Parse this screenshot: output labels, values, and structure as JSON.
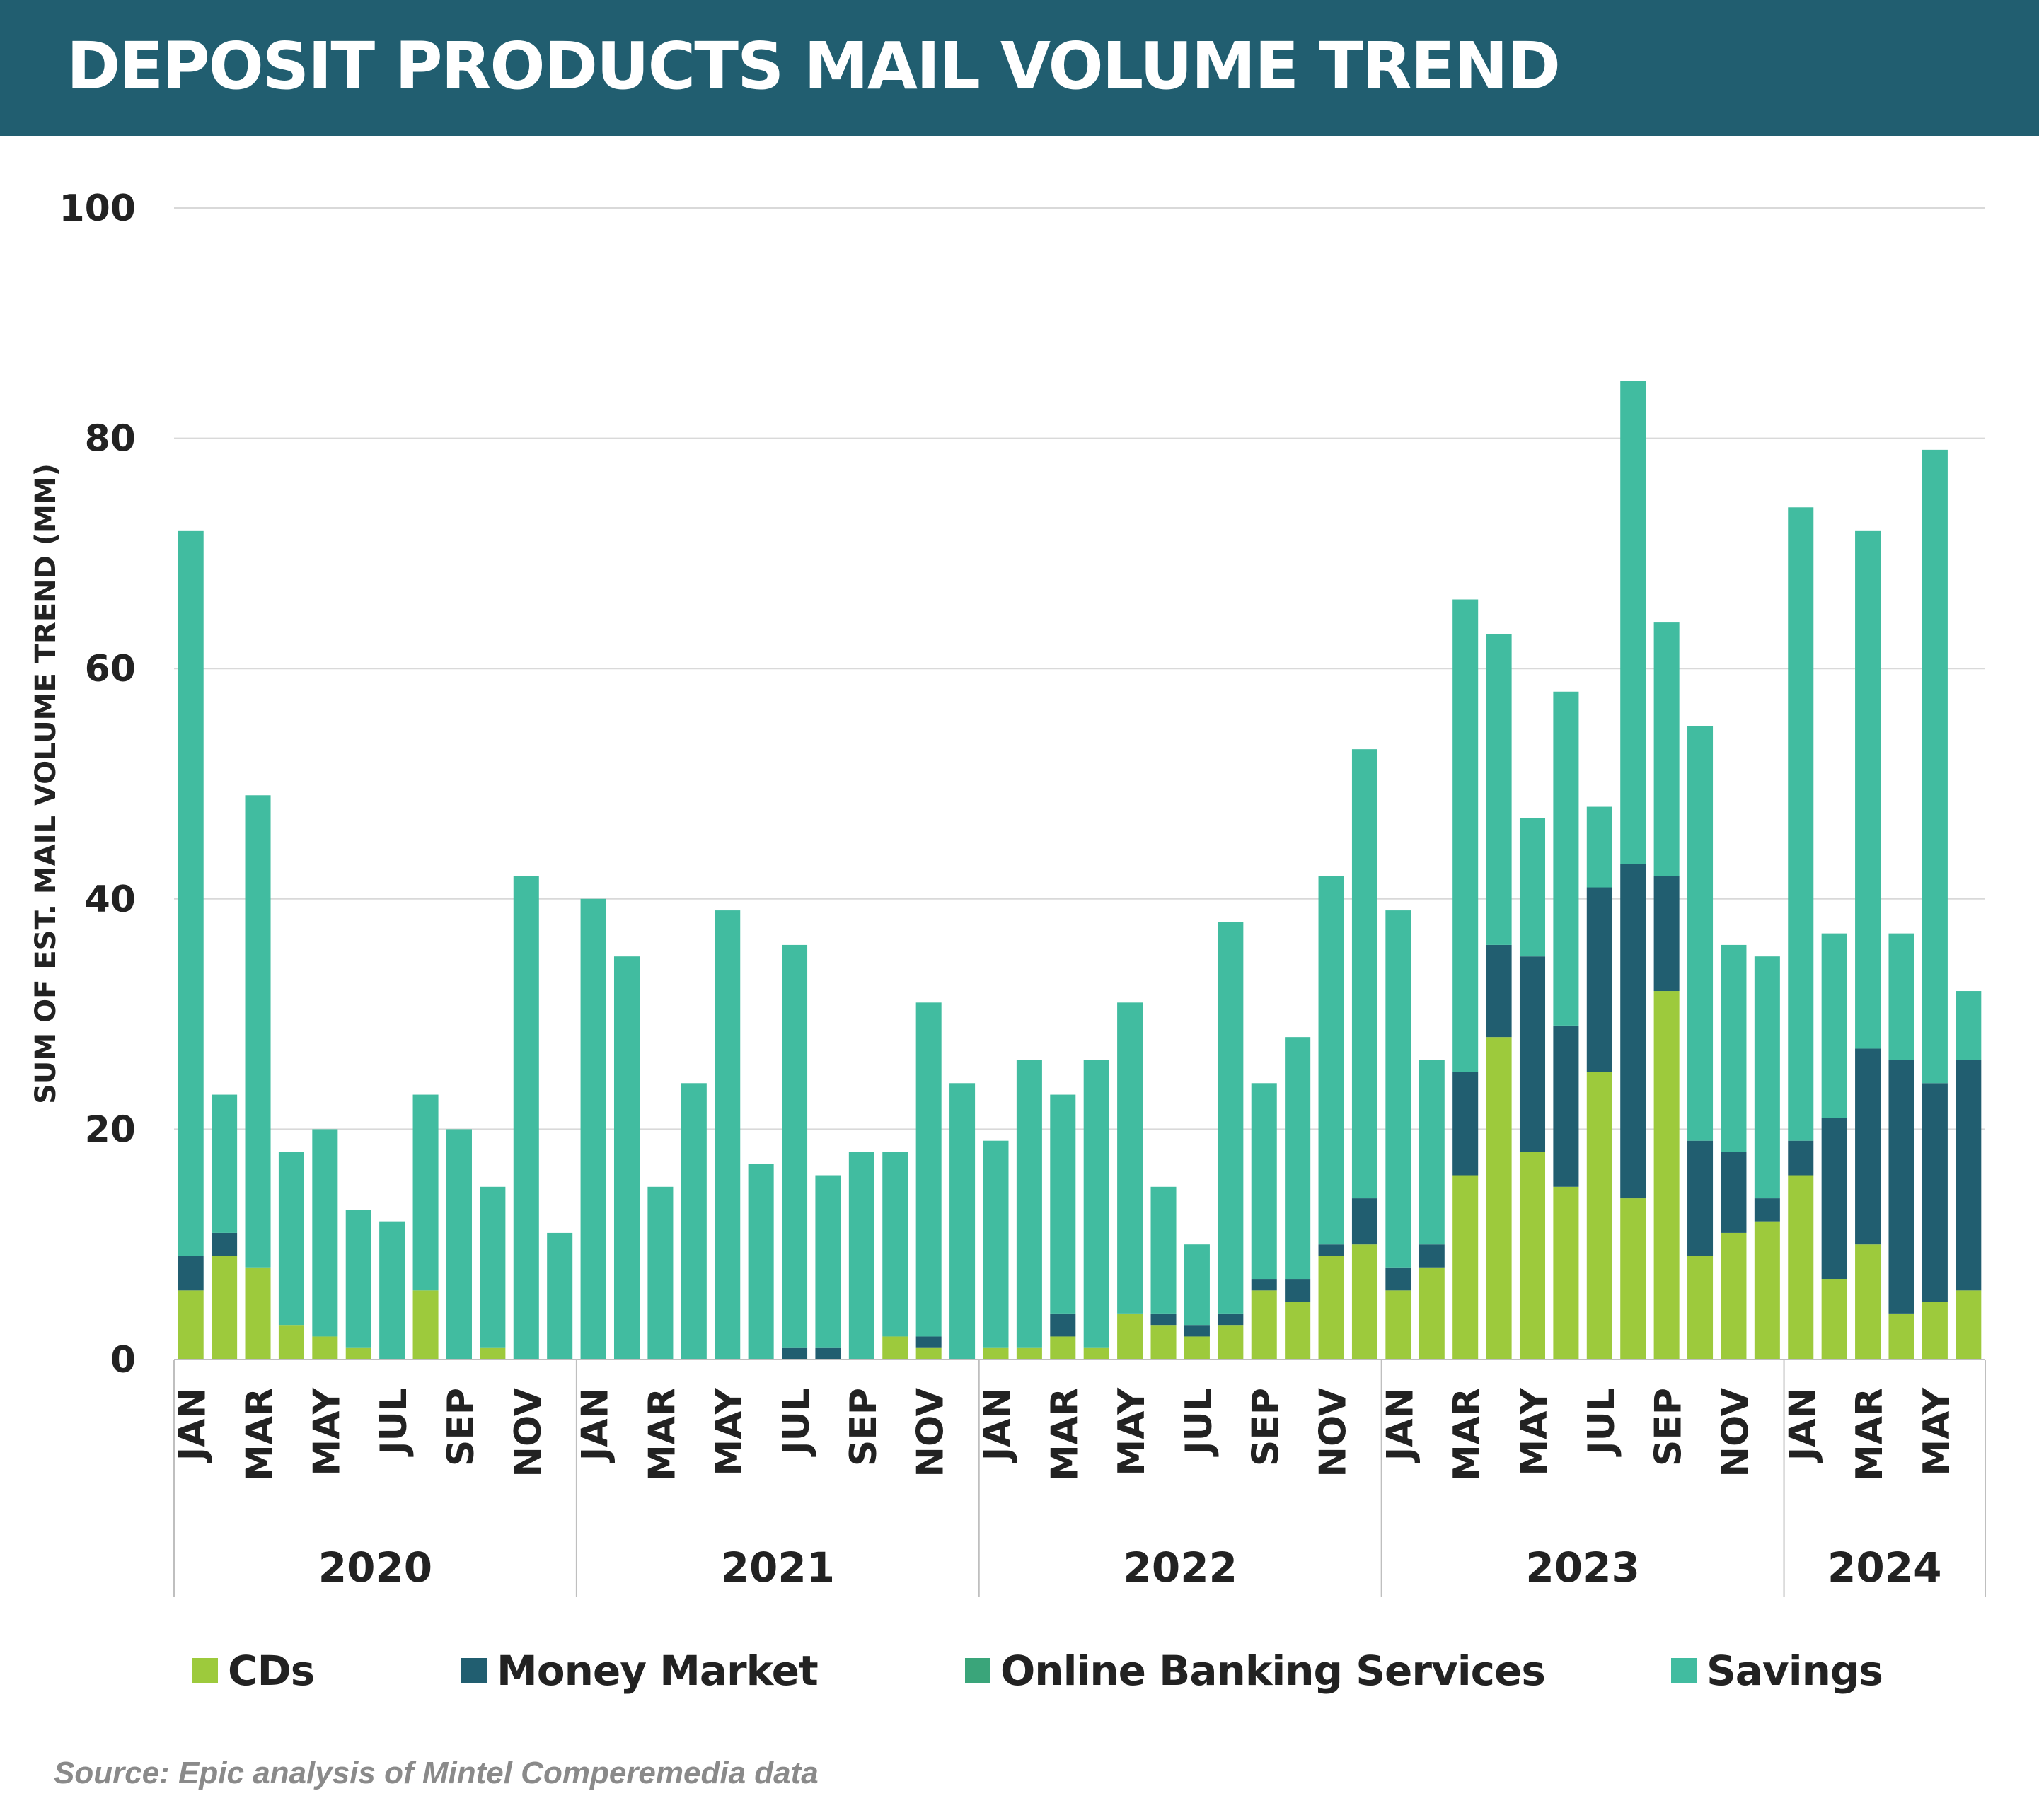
{
  "header": {
    "title": "DEPOSIT PRODUCTS MAIL VOLUME TREND"
  },
  "source": "Source: Epic analysis of Mintel Comperemedia data",
  "colors": {
    "CDs": "#9dca3c",
    "Money Market": "#215e70",
    "Online Banking Services": "#3aa57a",
    "Savings": "#41bca0",
    "header_bg": "#215e70",
    "gridline": "#d9d9d9"
  },
  "legend": [
    {
      "label": "CDs",
      "color": "#9dca3c"
    },
    {
      "label": "Money Market",
      "color": "#215e70"
    },
    {
      "label": "Online Banking Services",
      "color": "#3aa57a"
    },
    {
      "label": "Savings",
      "color": "#41bca0"
    }
  ],
  "chart_data": {
    "type": "bar",
    "stacked": true,
    "title": "DEPOSIT PRODUCTS MAIL VOLUME TREND",
    "ylabel": "SUM OF EST. MAIL VOLUME TREND (MM)",
    "ylim": [
      0,
      100
    ],
    "yticks": [
      0,
      20,
      40,
      60,
      80,
      100
    ],
    "grid": true,
    "legend_position": "bottom",
    "year_groups": [
      {
        "label": "2020",
        "count": 12
      },
      {
        "label": "2021",
        "count": 12
      },
      {
        "label": "2022",
        "count": 12
      },
      {
        "label": "2023",
        "count": 12
      },
      {
        "label": "2024",
        "count": 6
      }
    ],
    "categories": [
      "JAN",
      "FEB",
      "MAR",
      "APR",
      "MAY",
      "JUN",
      "JUL",
      "AUG",
      "SEP",
      "OCT",
      "NOV",
      "DEC",
      "JAN",
      "FEB",
      "MAR",
      "APR",
      "MAY",
      "JUN",
      "JUL",
      "AUG",
      "SEP",
      "OCT",
      "NOV",
      "DEC",
      "JAN",
      "FEB",
      "MAR",
      "APR",
      "MAY",
      "JUN",
      "JUL",
      "AUG",
      "SEP",
      "OCT",
      "NOV",
      "DEC",
      "JAN",
      "FEB",
      "MAR",
      "APR",
      "MAY",
      "JUN",
      "JUL",
      "AUG",
      "SEP",
      "OCT",
      "NOV",
      "DEC",
      "JAN",
      "FEB",
      "MAR",
      "APR",
      "MAY",
      "JUN"
    ],
    "tick_labels_shown": [
      "JAN",
      "",
      "MAR",
      "",
      "MAY",
      "",
      "JUL",
      "",
      "SEP",
      "",
      "NOV",
      "",
      "JAN",
      "",
      "MAR",
      "",
      "MAY",
      "",
      "JUL",
      "",
      "SEP",
      "",
      "NOV",
      "",
      "JAN",
      "",
      "MAR",
      "",
      "MAY",
      "",
      "JUL",
      "",
      "SEP",
      "",
      "NOV",
      "",
      "JAN",
      "",
      "MAR",
      "",
      "MAY",
      "",
      "JUL",
      "",
      "SEP",
      "",
      "NOV",
      "",
      "JAN",
      "",
      "MAR",
      "",
      "MAY",
      ""
    ],
    "series": [
      {
        "name": "CDs",
        "color": "#9dca3c",
        "values": [
          6,
          9,
          8,
          3,
          2,
          1,
          0,
          6,
          0,
          1,
          0,
          0,
          0,
          0,
          0,
          0,
          0,
          0,
          0,
          0,
          0,
          2,
          1,
          0,
          1,
          1,
          2,
          1,
          4,
          3,
          2,
          3,
          6,
          5,
          9,
          10,
          6,
          8,
          16,
          28,
          18,
          15,
          25,
          14,
          32,
          9,
          11,
          12,
          16,
          7,
          10,
          4,
          5,
          6
        ]
      },
      {
        "name": "Money Market",
        "color": "#215e70",
        "values": [
          3,
          2,
          0,
          0,
          0,
          0,
          0,
          0,
          0,
          0,
          0,
          0,
          0,
          0,
          0,
          0,
          0,
          0,
          1,
          1,
          0,
          0,
          1,
          0,
          0,
          0,
          2,
          0,
          0,
          1,
          1,
          1,
          1,
          2,
          1,
          4,
          2,
          2,
          9,
          8,
          17,
          14,
          16,
          29,
          10,
          10,
          7,
          2,
          3,
          14,
          17,
          22,
          19,
          20
        ]
      },
      {
        "name": "Online Banking Services",
        "color": "#3aa57a",
        "values": [
          0,
          0,
          0,
          0,
          0,
          0,
          0,
          0,
          0,
          0,
          0,
          0,
          0,
          0,
          0,
          0,
          0,
          0,
          0,
          0,
          0,
          0,
          0,
          0,
          0,
          0,
          0,
          0,
          0,
          0,
          0,
          0,
          0,
          0,
          0,
          0,
          0,
          0,
          0,
          0,
          0,
          0,
          0,
          0,
          0,
          0,
          0,
          0,
          0,
          0,
          0,
          0,
          0,
          0
        ]
      },
      {
        "name": "Savings",
        "color": "#41bca0",
        "values": [
          63,
          12,
          41,
          15,
          18,
          12,
          12,
          17,
          20,
          14,
          42,
          11,
          40,
          35,
          15,
          24,
          39,
          17,
          35,
          15,
          18,
          16,
          29,
          24,
          18,
          25,
          19,
          25,
          27,
          11,
          7,
          34,
          17,
          21,
          32,
          39,
          31,
          16,
          41,
          27,
          12,
          29,
          7,
          42,
          22,
          36,
          18,
          21,
          55,
          16,
          45,
          11,
          55,
          6
        ]
      }
    ]
  }
}
